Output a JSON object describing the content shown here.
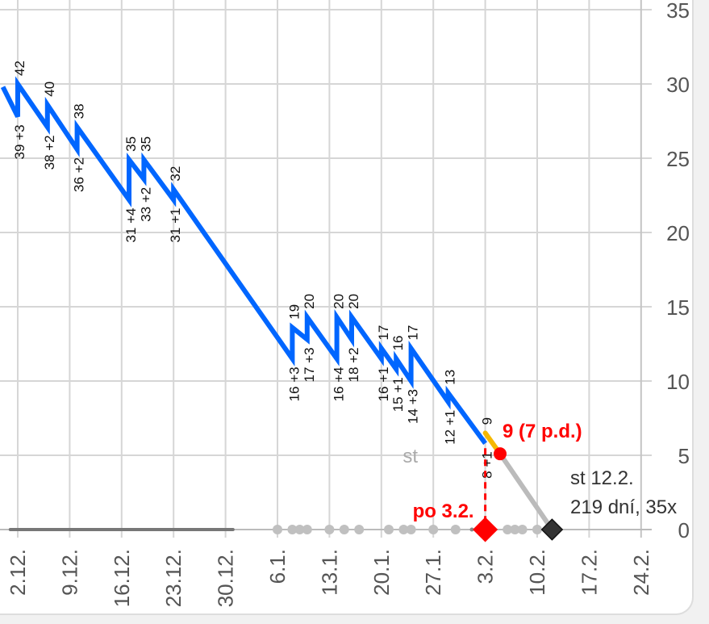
{
  "chart_data": {
    "type": "line",
    "title": "",
    "xlabel": "",
    "ylabel": "",
    "ylim": [
      0,
      35
    ],
    "yticks": [
      0,
      5,
      10,
      15,
      20,
      25,
      30,
      35
    ],
    "xticks": [
      "2.12.",
      "9.12.",
      "16.12.",
      "23.12.",
      "30.12.",
      "6.1.",
      "13.1.",
      "20.1.",
      "27.1.",
      "3.2.",
      "10.2.",
      "17.2.",
      "24.2."
    ],
    "grid": true,
    "colors": {
      "history": "#0066ff",
      "recent": "#f5b800",
      "forecast": "#bbbbbb",
      "today": "#ff0000",
      "end": "#333333",
      "dots": "#c0c0c0",
      "bar": "#777777"
    },
    "history_line": [
      [
        "30.11.",
        29.8
      ],
      [
        "2.12.",
        27.8
      ],
      [
        "2.12.",
        30.0
      ],
      [
        "6.12.",
        27.1
      ],
      [
        "6.12.",
        28.6
      ],
      [
        "10.12.",
        25.6
      ],
      [
        "10.12.",
        27.1
      ],
      [
        "17.12.",
        22.2
      ],
      [
        "17.12.",
        24.9
      ],
      [
        "19.12.",
        23.6
      ],
      [
        "19.12.",
        24.9
      ],
      [
        "23.12.",
        22.2
      ],
      [
        "23.12.",
        22.9
      ],
      [
        "8.1.",
        11.5
      ],
      [
        "8.1.",
        13.6
      ],
      [
        "10.1.",
        12.8
      ],
      [
        "10.1.",
        14.3
      ],
      [
        "14.1.",
        11.5
      ],
      [
        "14.1.",
        14.3
      ],
      [
        "16.1.",
        12.8
      ],
      [
        "16.1.",
        14.3
      ],
      [
        "20.1.",
        11.5
      ],
      [
        "20.1.",
        12.2
      ],
      [
        "22.1.",
        10.8
      ],
      [
        "22.1.",
        11.5
      ],
      [
        "24.1.",
        10.0
      ],
      [
        "24.1.",
        12.2
      ],
      [
        "29.1.",
        8.6
      ],
      [
        "29.1.",
        9.2
      ],
      [
        "3.2.",
        5.8
      ]
    ],
    "recent_line": [
      [
        "3.2.",
        6.5
      ],
      [
        "5.2.",
        5.1
      ]
    ],
    "forecast_line": [
      [
        "5.2.",
        5.1
      ],
      [
        "12.2.",
        0
      ]
    ],
    "refills": [
      {
        "date": "2.12.",
        "low": 27.8,
        "high": 30.0,
        "below": "39 +3",
        "above": "42"
      },
      {
        "date": "6.12.",
        "low": 27.1,
        "high": 28.6,
        "below": "38 +2",
        "above": "40"
      },
      {
        "date": "10.12.",
        "low": 25.6,
        "high": 27.1,
        "below": "36 +2",
        "above": "38"
      },
      {
        "date": "17.12.",
        "low": 22.2,
        "high": 24.9,
        "below": "31 +4",
        "above": "35"
      },
      {
        "date": "19.12.",
        "low": 23.6,
        "high": 24.9,
        "below": "33 +2",
        "above": "35"
      },
      {
        "date": "23.12.",
        "low": 22.2,
        "high": 22.9,
        "below": "31 +1",
        "above": "32"
      },
      {
        "date": "8.1.",
        "low": 11.5,
        "high": 13.6,
        "below": "16 +3",
        "above": "19"
      },
      {
        "date": "10.1.",
        "low": 12.8,
        "high": 14.3,
        "below": "17 +3",
        "above": "20"
      },
      {
        "date": "14.1.",
        "low": 11.5,
        "high": 14.3,
        "below": "16 +4",
        "above": "20"
      },
      {
        "date": "16.1.",
        "low": 12.8,
        "high": 14.3,
        "below": "18 +2",
        "above": "20"
      },
      {
        "date": "20.1.",
        "low": 11.5,
        "high": 12.2,
        "below": "16 +1",
        "above": "17"
      },
      {
        "date": "22.1.",
        "low": 10.8,
        "high": 11.5,
        "below": "15 +1",
        "above": "16"
      },
      {
        "date": "24.1.",
        "low": 10.0,
        "high": 12.2,
        "below": "14 +3",
        "above": "17"
      },
      {
        "date": "29.1.",
        "low": 8.6,
        "high": 9.2,
        "below": "12 +1",
        "above": "13"
      },
      {
        "date": "3.2.",
        "low": 5.8,
        "high": 6.5,
        "below": "8 +1",
        "above": "9"
      }
    ],
    "axis_dots": [
      "6.1.",
      "8.1.",
      "9.1.",
      "10.1.",
      "13.1.",
      "15.1.",
      "17.1.",
      "21.1.",
      "23.1.",
      "24.1.",
      "27.1.",
      "30.1.",
      "6.2.",
      "7.2.",
      "8.2.",
      "10.2."
    ],
    "axis_bar": [
      "1.12.",
      "31.12."
    ],
    "today": {
      "date": "3.2.",
      "label": "po 3.2."
    },
    "current_point": {
      "date": "5.2.",
      "value": 5.1,
      "label": "9 (7 p.d.)"
    },
    "end_point": {
      "date": "12.2.",
      "value": 0,
      "label1": "st 12.2.",
      "label2": "219 dní, 35x"
    },
    "st_marker": {
      "value": 5,
      "label": "st"
    }
  }
}
